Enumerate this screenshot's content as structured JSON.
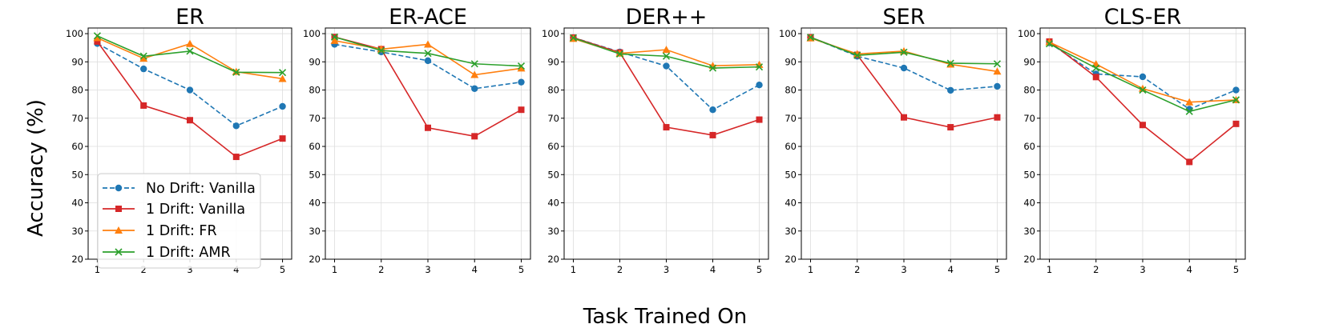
{
  "figure": {
    "ylabel": "Accuracy (%)",
    "xlabel": "Task Trained On"
  },
  "legend": {
    "placement": "lower-left of first panel",
    "entries": [
      {
        "label": "No Drift: Vanilla",
        "series": "no_drift_vanilla"
      },
      {
        "label": "1 Drift: Vanilla",
        "series": "drift_vanilla"
      },
      {
        "label": "1 Drift: FR",
        "series": "drift_fr"
      },
      {
        "label": "1 Drift: AMR",
        "series": "drift_amr"
      }
    ]
  },
  "series_style": {
    "no_drift_vanilla": {
      "color": "#1f77b4",
      "marker": "circle",
      "dashed": true
    },
    "drift_vanilla": {
      "color": "#d62728",
      "marker": "square",
      "dashed": false
    },
    "drift_fr": {
      "color": "#ff7f0e",
      "marker": "triangle",
      "dashed": false
    },
    "drift_amr": {
      "color": "#2ca02c",
      "marker": "x",
      "dashed": false
    }
  },
  "chart_data": [
    {
      "type": "line",
      "title": "ER",
      "x": [
        1,
        2,
        3,
        4,
        5
      ],
      "ylim": [
        20,
        100
      ],
      "yticks": [
        20,
        30,
        40,
        50,
        60,
        70,
        80,
        90,
        100
      ],
      "grid": true,
      "series": [
        {
          "key": "no_drift_vanilla",
          "name": "No Drift: Vanilla",
          "values": [
            96.5,
            87.5,
            80,
            67.3,
            74.2
          ]
        },
        {
          "key": "drift_vanilla",
          "name": "1 Drift: Vanilla",
          "values": [
            97.2,
            74.5,
            69.3,
            56.3,
            62.8
          ]
        },
        {
          "key": "drift_fr",
          "name": "1 Drift: FR",
          "values": [
            98.5,
            91.2,
            96.4,
            86.5,
            84
          ]
        },
        {
          "key": "drift_amr",
          "name": "1 Drift: AMR",
          "values": [
            99.2,
            92,
            93.8,
            86.3,
            86.2
          ]
        }
      ]
    },
    {
      "type": "line",
      "title": "ER-ACE",
      "x": [
        1,
        2,
        3,
        4,
        5
      ],
      "ylim": [
        20,
        100
      ],
      "yticks": [
        20,
        30,
        40,
        50,
        60,
        70,
        80,
        90,
        100
      ],
      "grid": true,
      "series": [
        {
          "key": "no_drift_vanilla",
          "name": "No Drift: Vanilla",
          "values": [
            96.2,
            93.5,
            90.4,
            80.5,
            82.8
          ]
        },
        {
          "key": "drift_vanilla",
          "name": "1 Drift: Vanilla",
          "values": [
            98.8,
            94.5,
            66.6,
            63.6,
            73
          ]
        },
        {
          "key": "drift_fr",
          "name": "1 Drift: FR",
          "values": [
            97.5,
            94.5,
            96.2,
            85.4,
            87.7
          ]
        },
        {
          "key": "drift_amr",
          "name": "1 Drift: AMR",
          "values": [
            98.8,
            94,
            93,
            89.3,
            88.5
          ]
        }
      ]
    },
    {
      "type": "line",
      "title": "DER++",
      "x": [
        1,
        2,
        3,
        4,
        5
      ],
      "ylim": [
        20,
        100
      ],
      "yticks": [
        20,
        30,
        40,
        50,
        60,
        70,
        80,
        90,
        100
      ],
      "grid": true,
      "series": [
        {
          "key": "no_drift_vanilla",
          "name": "No Drift: Vanilla",
          "values": [
            98.6,
            93.5,
            88.5,
            73,
            81.8
          ]
        },
        {
          "key": "drift_vanilla",
          "name": "1 Drift: Vanilla",
          "values": [
            98.6,
            93.3,
            66.8,
            64,
            69.5
          ]
        },
        {
          "key": "drift_fr",
          "name": "1 Drift: FR",
          "values": [
            98.2,
            93,
            94.3,
            88.6,
            89
          ]
        },
        {
          "key": "drift_amr",
          "name": "1 Drift: AMR",
          "values": [
            98.5,
            92.8,
            92,
            87.8,
            88.2
          ]
        }
      ]
    },
    {
      "type": "line",
      "title": "SER",
      "x": [
        1,
        2,
        3,
        4,
        5
      ],
      "ylim": [
        20,
        100
      ],
      "yticks": [
        20,
        30,
        40,
        50,
        60,
        70,
        80,
        90,
        100
      ],
      "grid": true,
      "series": [
        {
          "key": "no_drift_vanilla",
          "name": "No Drift: Vanilla",
          "values": [
            98.7,
            92,
            87.8,
            79.9,
            81.3
          ]
        },
        {
          "key": "drift_vanilla",
          "name": "1 Drift: Vanilla",
          "values": [
            98.7,
            92.5,
            70.3,
            66.8,
            70.3
          ]
        },
        {
          "key": "drift_fr",
          "name": "1 Drift: FR",
          "values": [
            98.4,
            92.8,
            93.8,
            89.1,
            86.6
          ]
        },
        {
          "key": "drift_amr",
          "name": "1 Drift: AMR",
          "values": [
            98.7,
            92.3,
            93.4,
            89.5,
            89.3
          ]
        }
      ]
    },
    {
      "type": "line",
      "title": "CLS-ER",
      "x": [
        1,
        2,
        3,
        4,
        5
      ],
      "ylim": [
        20,
        100
      ],
      "yticks": [
        20,
        30,
        40,
        50,
        60,
        70,
        80,
        90,
        100
      ],
      "grid": true,
      "series": [
        {
          "key": "no_drift_vanilla",
          "name": "No Drift: Vanilla",
          "values": [
            96.7,
            85.7,
            84.7,
            73.2,
            80
          ]
        },
        {
          "key": "drift_vanilla",
          "name": "1 Drift: Vanilla",
          "values": [
            97.2,
            84.6,
            67.6,
            54.5,
            68
          ]
        },
        {
          "key": "drift_fr",
          "name": "1 Drift: FR",
          "values": [
            97,
            89.2,
            80.5,
            75.7,
            76.5
          ]
        },
        {
          "key": "drift_amr",
          "name": "1 Drift: AMR",
          "values": [
            96.4,
            87.8,
            80,
            72.4,
            76.5
          ]
        }
      ]
    }
  ]
}
